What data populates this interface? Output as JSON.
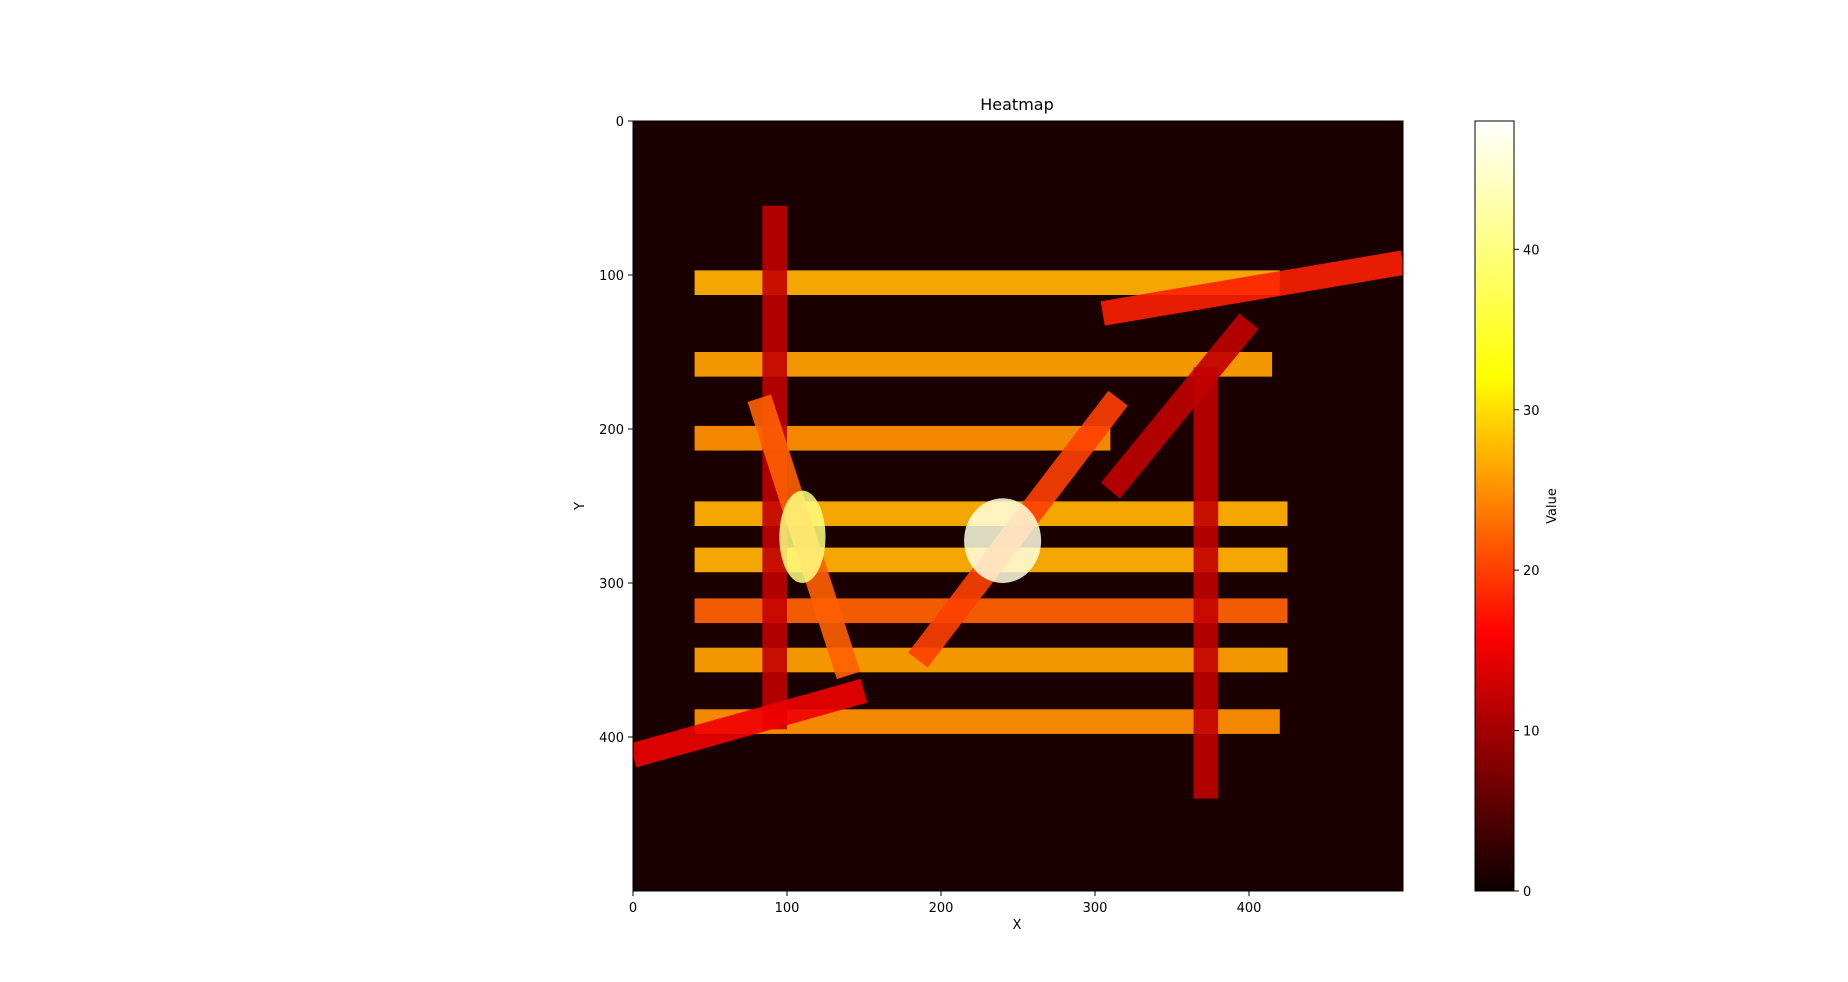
{
  "chart_data": {
    "type": "heatmap",
    "title": "Heatmap",
    "xlabel": "X",
    "ylabel": "Y",
    "xlim": [
      0,
      500
    ],
    "ylim": [
      500,
      0
    ],
    "y_axis_inverted": true,
    "x_ticks": [
      0,
      100,
      200,
      300,
      400
    ],
    "y_ticks": [
      0,
      100,
      200,
      300,
      400
    ],
    "colormap": "hot",
    "colormap_stops": [
      "#0b0000",
      "#ff0000",
      "#ffff00",
      "#ffffff"
    ],
    "colorbar": {
      "label": "Value",
      "range": [
        0,
        48
      ],
      "ticks": [
        0,
        10,
        20,
        30,
        40
      ]
    },
    "background_value": 1,
    "features": [
      {
        "kind": "horizontal-band",
        "x": [
          40,
          420
        ],
        "y": 105,
        "value": 27
      },
      {
        "kind": "horizontal-band",
        "x": [
          40,
          415
        ],
        "y": 158,
        "value": 26
      },
      {
        "kind": "horizontal-band",
        "x": [
          40,
          310
        ],
        "y": 206,
        "value": 25
      },
      {
        "kind": "horizontal-band",
        "x": [
          40,
          425
        ],
        "y": 255,
        "value": 27
      },
      {
        "kind": "horizontal-band",
        "x": [
          40,
          425
        ],
        "y": 285,
        "value": 27
      },
      {
        "kind": "horizontal-band",
        "x": [
          40,
          425
        ],
        "y": 318,
        "value": 22
      },
      {
        "kind": "horizontal-band",
        "x": [
          40,
          425
        ],
        "y": 350,
        "value": 26
      },
      {
        "kind": "horizontal-band",
        "x": [
          40,
          420
        ],
        "y": 390,
        "value": 25
      },
      {
        "kind": "vertical-band",
        "x": 92,
        "y": [
          55,
          395
        ],
        "value": 12
      },
      {
        "kind": "vertical-band",
        "x": 372,
        "y": [
          160,
          440
        ],
        "value": 12
      },
      {
        "kind": "diagonal-band",
        "from": [
          0,
          412
        ],
        "to": [
          150,
          370
        ],
        "value": 15
      },
      {
        "kind": "diagonal-band",
        "from": [
          305,
          125
        ],
        "to": [
          500,
          92
        ],
        "value": 18
      },
      {
        "kind": "diagonal-band",
        "from": [
          82,
          180
        ],
        "to": [
          140,
          360
        ],
        "value": 22
      },
      {
        "kind": "diagonal-band",
        "from": [
          185,
          350
        ],
        "to": [
          315,
          180
        ],
        "value": 20
      },
      {
        "kind": "diagonal-band",
        "from": [
          310,
          240
        ],
        "to": [
          400,
          130
        ],
        "value": 12
      },
      {
        "kind": "hotspot",
        "x": [
          95,
          125
        ],
        "y": [
          240,
          300
        ],
        "value": 40
      },
      {
        "kind": "hotspot",
        "x": [
          215,
          265
        ],
        "y": [
          245,
          300
        ],
        "value": 46
      }
    ]
  }
}
